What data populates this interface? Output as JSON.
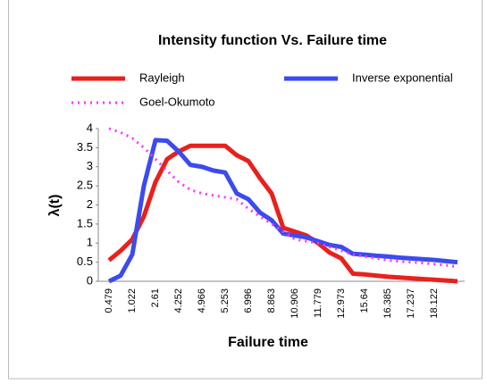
{
  "chart_data": {
    "type": "line",
    "title": "Intensity function  Vs. Failure time",
    "x_label": "Failure time",
    "y_label": "λ(t)",
    "categories": [
      "0.479",
      null,
      "1.022",
      null,
      "2.61",
      null,
      "4.252",
      null,
      "4.966",
      null,
      "5.253",
      null,
      "6.996",
      null,
      "8.863",
      null,
      "10.906",
      null,
      "11.779",
      null,
      "12.973",
      null,
      "15.64",
      null,
      "16.385",
      null,
      "17.237",
      null,
      "18.122",
      null,
      null
    ],
    "ylim": [
      0,
      4
    ],
    "yticks": [
      0,
      0.5,
      1,
      1.5,
      2,
      2.5,
      3,
      3.5,
      4
    ],
    "grid": false,
    "legend": "top",
    "series": [
      {
        "name": "Rayleigh",
        "color": "#e8211c",
        "style": "solid",
        "values": [
          0.55,
          0.8,
          1.1,
          1.7,
          2.6,
          3.2,
          3.4,
          3.55,
          3.55,
          3.55,
          3.55,
          3.3,
          3.15,
          2.7,
          2.3,
          1.4,
          1.3,
          1.2,
          1.0,
          0.75,
          0.6,
          0.2,
          0.18,
          0.15,
          0.12,
          0.1,
          0.08,
          0.06,
          0.04,
          0.02,
          0
        ]
      },
      {
        "name": "Inverse exponential",
        "color": "#3b4bef",
        "style": "solid",
        "values": [
          0,
          0.15,
          0.7,
          2.5,
          3.7,
          3.68,
          3.4,
          3.05,
          3.0,
          2.9,
          2.85,
          2.3,
          2.15,
          1.8,
          1.6,
          1.25,
          1.2,
          1.15,
          1.05,
          0.95,
          0.9,
          0.72,
          0.7,
          0.67,
          0.65,
          0.62,
          0.6,
          0.58,
          0.56,
          0.53,
          0.5
        ]
      },
      {
        "name": "Goel-Okumoto",
        "color": "#ff33ff",
        "style": "dotted",
        "values": [
          4.0,
          3.9,
          3.75,
          3.5,
          3.2,
          2.9,
          2.6,
          2.4,
          2.3,
          2.25,
          2.2,
          2.15,
          1.9,
          1.7,
          1.5,
          1.3,
          1.1,
          1.05,
          1.0,
          0.9,
          0.8,
          0.7,
          0.65,
          0.6,
          0.55,
          0.52,
          0.5,
          0.48,
          0.45,
          0.42,
          0.38
        ]
      }
    ]
  }
}
